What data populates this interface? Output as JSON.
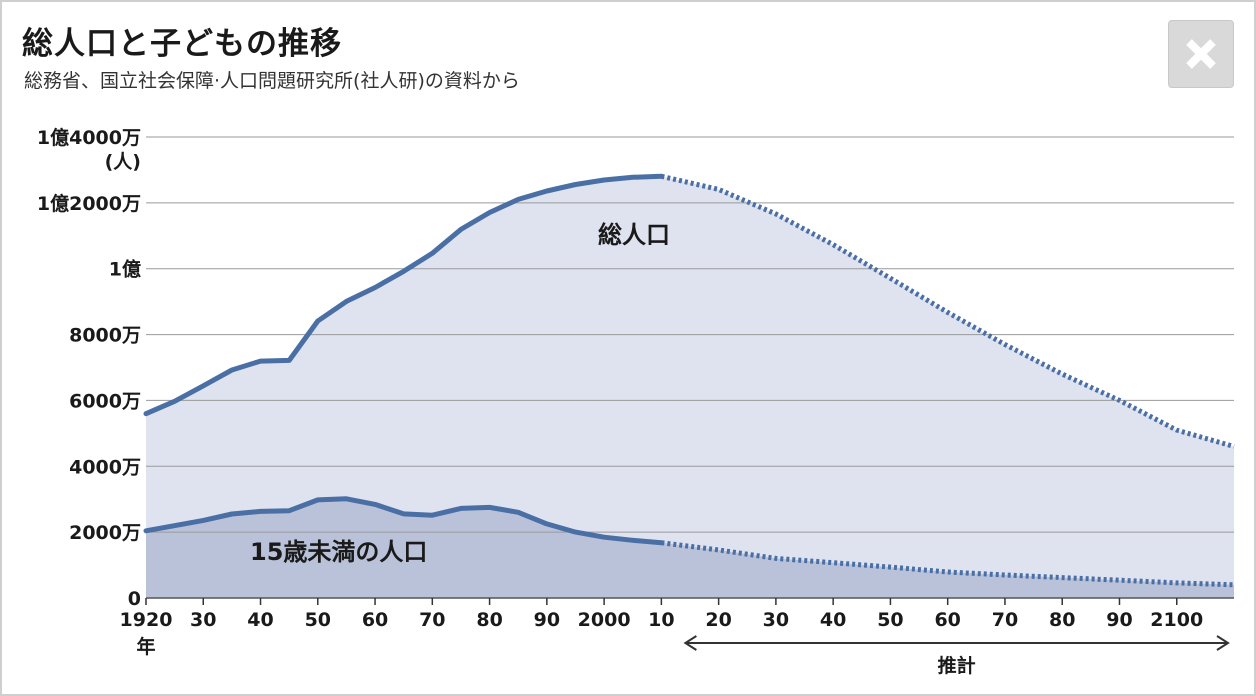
{
  "header": {
    "title": "総人口と子どもの推移",
    "subtitle": "総務省、国立社会保障·人口問題研究所(社人研)の資料から",
    "close_icon": "close-icon"
  },
  "colors": {
    "total_line": "#4a6fa5",
    "total_fill": "#dfe2ef",
    "child_fill": "#bac2da",
    "grid": "#9a9a9a"
  },
  "chart_data": {
    "type": "area",
    "y_unit": "(人)",
    "y_ticks": [
      {
        "value": 0,
        "label": "0"
      },
      {
        "value": 20000000,
        "label": "2000万"
      },
      {
        "value": 40000000,
        "label": "4000万"
      },
      {
        "value": 60000000,
        "label": "6000万"
      },
      {
        "value": 80000000,
        "label": "8000万"
      },
      {
        "value": 100000000,
        "label": "1億"
      },
      {
        "value": 120000000,
        "label": "1億2000万"
      },
      {
        "value": 140000000,
        "label": "1億4000万"
      }
    ],
    "ylim": [
      0,
      140000000
    ],
    "x_ticks": [
      {
        "value": 1920,
        "label": "1920"
      },
      {
        "value": 1930,
        "label": "30"
      },
      {
        "value": 1940,
        "label": "40"
      },
      {
        "value": 1950,
        "label": "50"
      },
      {
        "value": 1960,
        "label": "60"
      },
      {
        "value": 1970,
        "label": "70"
      },
      {
        "value": 1980,
        "label": "80"
      },
      {
        "value": 1990,
        "label": "90"
      },
      {
        "value": 2000,
        "label": "2000"
      },
      {
        "value": 2010,
        "label": "10"
      },
      {
        "value": 2020,
        "label": "20"
      },
      {
        "value": 2030,
        "label": "30"
      },
      {
        "value": 2040,
        "label": "40"
      },
      {
        "value": 2050,
        "label": "50"
      },
      {
        "value": 2060,
        "label": "60"
      },
      {
        "value": 2070,
        "label": "70"
      },
      {
        "value": 2080,
        "label": "80"
      },
      {
        "value": 2090,
        "label": "90"
      },
      {
        "value": 2100,
        "label": "2100"
      }
    ],
    "x_first_suffix": "年",
    "xlim": [
      1920,
      2110
    ],
    "estimate_label": "推計",
    "estimate_range": [
      2010,
      2110
    ],
    "series": [
      {
        "name": "総人口",
        "actual": [
          [
            1920,
            55960000
          ],
          [
            1925,
            59740000
          ],
          [
            1930,
            64450000
          ],
          [
            1935,
            69250000
          ],
          [
            1940,
            71930000
          ],
          [
            1945,
            72150000
          ],
          [
            1950,
            84120000
          ],
          [
            1955,
            90080000
          ],
          [
            1960,
            94300000
          ],
          [
            1965,
            99210000
          ],
          [
            1970,
            104670000
          ],
          [
            1975,
            111940000
          ],
          [
            1980,
            117060000
          ],
          [
            1985,
            121050000
          ],
          [
            1990,
            123610000
          ],
          [
            1995,
            125570000
          ],
          [
            2000,
            126930000
          ],
          [
            2005,
            127770000
          ],
          [
            2010,
            128060000
          ]
        ],
        "projected": [
          [
            2010,
            128060000
          ],
          [
            2020,
            124100000
          ],
          [
            2030,
            116620000
          ],
          [
            2040,
            107280000
          ],
          [
            2050,
            97080000
          ],
          [
            2060,
            86740000
          ],
          [
            2070,
            77000000
          ],
          [
            2080,
            68000000
          ],
          [
            2090,
            60000000
          ],
          [
            2100,
            51000000
          ],
          [
            2110,
            46000000
          ]
        ]
      },
      {
        "name": "15歳未満の人口",
        "actual": [
          [
            1920,
            20420000
          ],
          [
            1930,
            23580000
          ],
          [
            1935,
            25500000
          ],
          [
            1940,
            26300000
          ],
          [
            1945,
            26500000
          ],
          [
            1950,
            29790000
          ],
          [
            1955,
            30120000
          ],
          [
            1960,
            28430000
          ],
          [
            1965,
            25530000
          ],
          [
            1970,
            25150000
          ],
          [
            1975,
            27220000
          ],
          [
            1980,
            27510000
          ],
          [
            1985,
            26030000
          ],
          [
            1990,
            22490000
          ],
          [
            1995,
            20010000
          ],
          [
            2000,
            18470000
          ],
          [
            2005,
            17520000
          ],
          [
            2010,
            16800000
          ]
        ],
        "projected": [
          [
            2010,
            16800000
          ],
          [
            2020,
            14570000
          ],
          [
            2030,
            12040000
          ],
          [
            2040,
            10730000
          ],
          [
            2050,
            9390000
          ],
          [
            2060,
            7910000
          ],
          [
            2070,
            7000000
          ],
          [
            2080,
            6200000
          ],
          [
            2090,
            5400000
          ],
          [
            2100,
            4600000
          ],
          [
            2110,
            4000000
          ]
        ]
      }
    ]
  }
}
